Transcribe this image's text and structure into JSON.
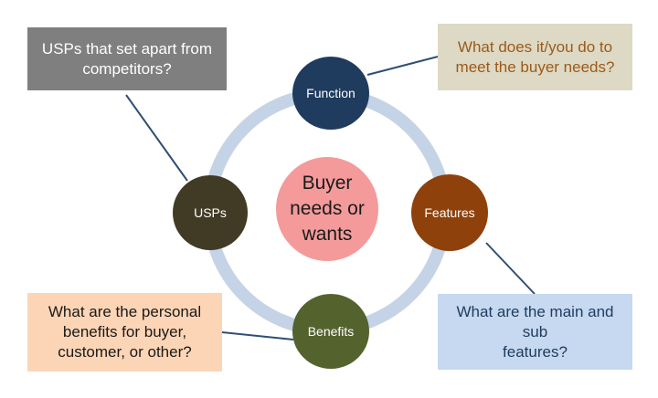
{
  "diagram": {
    "center": {
      "label": "Buyer\nneeds or\nwants",
      "fill": "#f49a9a",
      "text_color": "#1a1a1a"
    },
    "ring_color": "#c5d3e6",
    "connector_color": "#2f4e74",
    "nodes": {
      "function": {
        "label": "Function",
        "fill": "#1f3b5e"
      },
      "features": {
        "label": "Features",
        "fill": "#8f410b"
      },
      "benefits": {
        "label": "Benefits",
        "fill": "#54622e"
      },
      "usps": {
        "label": "USPs",
        "fill": "#413a25"
      }
    },
    "callouts": {
      "usps": {
        "text": "USPs that set apart from\ncompetitors?",
        "fill": "#7f7f7f",
        "text_color": "#ffffff"
      },
      "function": {
        "text": "What does it/you do to\nmeet the buyer needs?",
        "fill": "#ddd9c4",
        "text_color": "#9c5a1a"
      },
      "benefits": {
        "text": "What are the personal\nbenefits for buyer,\ncustomer, or other?",
        "fill": "#fbd5b5",
        "text_color": "#1a1a1a"
      },
      "features": {
        "text": "What are the main and sub\nfeatures?",
        "fill": "#c6d9f0",
        "text_color": "#1f3b5e"
      }
    }
  }
}
